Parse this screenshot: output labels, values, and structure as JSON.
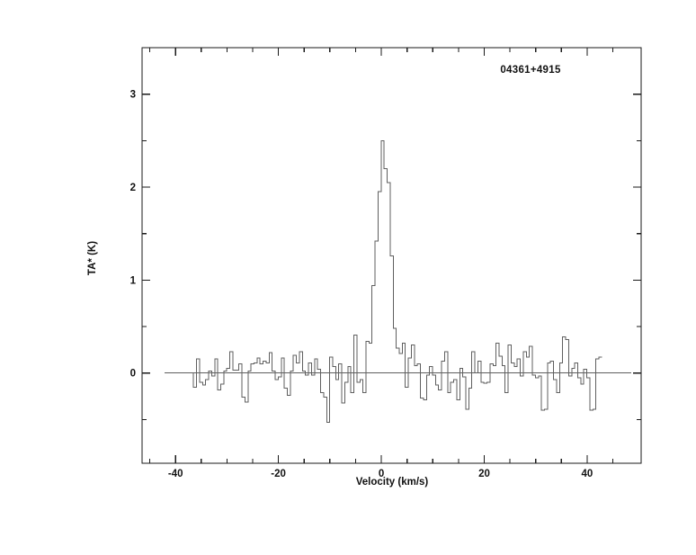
{
  "figure": {
    "source_label": "04361+4915",
    "x_axis_title": "Velocity (km/s)",
    "y_axis_title": "TA* (K)"
  },
  "colors": {
    "background": "#ffffff",
    "frame": "#1a1a1a",
    "trace": "#5f5f5f",
    "baseline": "#5f5f5f",
    "text": "#111111"
  },
  "chart_data": {
    "type": "line",
    "style": "histogram-step",
    "title": "04361+4915",
    "xlabel": "Velocity (km/s)",
    "ylabel": "TA* (K)",
    "xlim": [
      -46.5,
      50.5
    ],
    "ylim": [
      -0.97,
      3.5
    ],
    "grid": false,
    "legend": "none",
    "x_major_ticks": [
      -40,
      -20,
      0,
      20,
      40
    ],
    "x_tick_labels": [
      "-40",
      "-20",
      "0",
      "20",
      "40"
    ],
    "x_minor_ticks": [
      -45,
      -35,
      -30,
      -25,
      -15,
      -10,
      -5,
      5,
      10,
      15,
      25,
      30,
      35,
      45
    ],
    "y_major_ticks": [
      0,
      1,
      2,
      3
    ],
    "y_tick_labels": [
      "0",
      "1",
      "2",
      "3"
    ],
    "y_minor_ticks": [
      -0.5,
      0.5,
      1.5,
      2.5
    ],
    "baseline": {
      "y": 0.0,
      "x_from": -42.1,
      "x_to": 48.6
    },
    "peak": {
      "velocity": 0.3,
      "ta_k": 2.5
    },
    "series": [
      {
        "name": "spectrum",
        "x_start": -36.5,
        "dx": 0.588,
        "values": [
          -0.15,
          0.15,
          -0.1,
          -0.13,
          -0.07,
          0.02,
          -0.03,
          0.15,
          -0.18,
          -0.12,
          0.02,
          0.05,
          0.23,
          0.03,
          0.03,
          0.1,
          -0.26,
          -0.31,
          0.02,
          0.1,
          0.11,
          0.16,
          0.1,
          0.13,
          0.11,
          0.22,
          0.02,
          -0.07,
          -0.04,
          0.16,
          -0.16,
          -0.24,
          0.02,
          0.19,
          0.11,
          0.23,
          0.02,
          -0.02,
          0.11,
          -0.02,
          0.15,
          0.04,
          -0.21,
          -0.26,
          -0.53,
          0.17,
          0.07,
          -0.07,
          0.1,
          -0.32,
          -0.1,
          0.07,
          -0.21,
          0.41,
          -0.1,
          -0.07,
          -0.21,
          0.34,
          0.32,
          0.94,
          1.42,
          1.95,
          2.5,
          2.2,
          2.05,
          1.26,
          0.48,
          0.27,
          0.21,
          0.32,
          -0.15,
          0.16,
          0.3,
          0.08,
          0.1,
          -0.27,
          -0.29,
          -0.02,
          0.07,
          -0.02,
          -0.13,
          -0.18,
          0.13,
          0.23,
          -0.21,
          -0.1,
          -0.07,
          -0.29,
          0.05,
          -0.04,
          -0.39,
          -0.16,
          0.23,
          0.0,
          0.13,
          -0.1,
          -0.11,
          -0.1,
          0.1,
          0.08,
          0.32,
          0.18,
          0.08,
          -0.21,
          0.3,
          0.11,
          0.07,
          0.15,
          -0.03,
          0.23,
          0.17,
          0.29,
          -0.02,
          -0.05,
          -0.03,
          -0.4,
          -0.39,
          0.11,
          0.13,
          -0.07,
          -0.21,
          0.11,
          0.39,
          0.36,
          -0.03,
          0.05,
          0.11,
          -0.05,
          -0.12,
          0.04,
          -0.05,
          -0.4,
          -0.39,
          0.15,
          0.17
        ]
      }
    ]
  }
}
